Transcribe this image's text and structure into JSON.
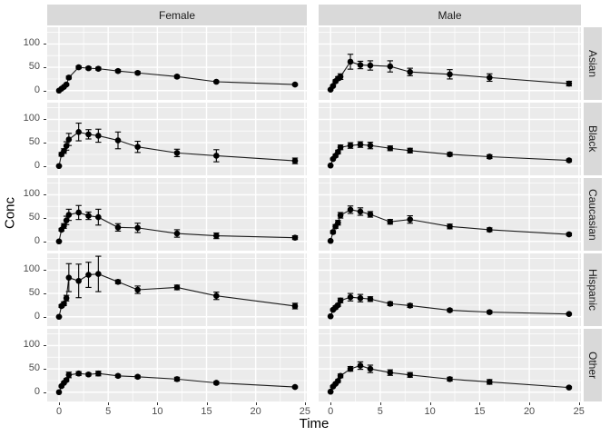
{
  "figure": {
    "xlabel": "Time",
    "ylabel": "Conc",
    "col_facets": [
      "Female",
      "Male"
    ],
    "row_facets": [
      "Asian",
      "Black",
      "Caucasian",
      "Hispanic",
      "Other"
    ],
    "x_tick_labels": [
      "0",
      "5",
      "10",
      "15",
      "20",
      "25"
    ],
    "y_tick_labels": [
      "100",
      "50",
      "0"
    ],
    "colors": {
      "panel_background": "#EBEBEB",
      "strip_background": "#D9D9D9",
      "gridline": "#FFFFFF",
      "point": "#000000",
      "line": "#1A1A1A",
      "axis_text": "#4D4D4D",
      "strip_text": "#1A1A1A"
    }
  },
  "chart_data": {
    "type": "line",
    "title": "",
    "xlabel": "Time",
    "ylabel": "Conc",
    "facet_columns": [
      "Female",
      "Male"
    ],
    "facet_rows": [
      "Asian",
      "Black",
      "Caucasian",
      "Hispanic",
      "Other"
    ],
    "x": [
      0,
      0.25,
      0.5,
      0.75,
      1,
      2,
      3,
      4,
      6,
      8,
      12,
      16,
      24
    ],
    "x_ticks": [
      0,
      5,
      10,
      15,
      20,
      25
    ],
    "y_ticks": [
      0,
      50,
      100
    ],
    "x_minor_ticks": [
      2.5,
      7.5,
      12.5,
      17.5,
      22.5
    ],
    "y_minor_ticks": [
      25,
      75,
      125
    ],
    "xlim": [
      -1.2,
      25.2
    ],
    "ylim": [
      -20,
      136
    ],
    "error_bars": true,
    "grid": true,
    "legend": false,
    "facets": [
      {
        "col": "Female",
        "row": "Asian",
        "mean": [
          0,
          4,
          8,
          13,
          28,
          50,
          48,
          47,
          42,
          38,
          30,
          19,
          13
        ],
        "err": [
          0,
          1,
          1,
          2,
          3,
          3,
          3,
          3,
          3,
          3,
          3,
          2,
          2
        ]
      },
      {
        "col": "Male",
        "row": "Asian",
        "mean": [
          2,
          10,
          20,
          26,
          30,
          62,
          55,
          54,
          52,
          40,
          35,
          28,
          15
        ],
        "err": [
          1,
          2,
          3,
          4,
          6,
          16,
          8,
          10,
          12,
          8,
          10,
          8,
          5
        ]
      },
      {
        "col": "Female",
        "row": "Black",
        "mean": [
          0,
          25,
          32,
          43,
          57,
          73,
          68,
          65,
          55,
          41,
          28,
          22,
          11
        ],
        "err": [
          1,
          4,
          5,
          9,
          13,
          19,
          10,
          14,
          18,
          12,
          8,
          13,
          6
        ]
      },
      {
        "col": "Male",
        "row": "Black",
        "mean": [
          1,
          15,
          22,
          30,
          40,
          44,
          46,
          44,
          38,
          33,
          25,
          20,
          12
        ],
        "err": [
          1,
          2,
          3,
          4,
          5,
          6,
          6,
          7,
          5,
          5,
          4,
          4,
          3
        ]
      },
      {
        "col": "Female",
        "row": "Caucasian",
        "mean": [
          0,
          25,
          33,
          45,
          57,
          62,
          55,
          52,
          30,
          29,
          17,
          12,
          8
        ],
        "err": [
          1,
          3,
          5,
          9,
          12,
          15,
          8,
          17,
          8,
          10,
          8,
          6,
          4
        ]
      },
      {
        "col": "Male",
        "row": "Caucasian",
        "mean": [
          1,
          20,
          32,
          40,
          56,
          68,
          64,
          58,
          42,
          47,
          32,
          25,
          15
        ],
        "err": [
          1,
          3,
          4,
          5,
          6,
          8,
          8,
          6,
          5,
          8,
          5,
          4,
          3
        ]
      },
      {
        "col": "Female",
        "row": "Hispanic",
        "mean": [
          0,
          23,
          28,
          40,
          84,
          77,
          90,
          92,
          75,
          58,
          63,
          45,
          23
        ],
        "err": [
          1,
          3,
          4,
          6,
          30,
          36,
          27,
          38,
          4,
          8,
          5,
          8,
          6
        ]
      },
      {
        "col": "Male",
        "row": "Hispanic",
        "mean": [
          1,
          15,
          20,
          25,
          35,
          42,
          40,
          38,
          28,
          24,
          14,
          10,
          6
        ],
        "err": [
          1,
          2,
          3,
          3,
          5,
          8,
          8,
          5,
          4,
          4,
          3,
          3,
          2
        ]
      },
      {
        "col": "Female",
        "row": "Other",
        "mean": [
          0,
          13,
          20,
          26,
          37,
          40,
          38,
          40,
          35,
          33,
          28,
          20,
          11
        ],
        "err": [
          0,
          2,
          2,
          3,
          6,
          4,
          3,
          5,
          3,
          3,
          4,
          3,
          2
        ]
      },
      {
        "col": "Male",
        "row": "Other",
        "mean": [
          1,
          12,
          18,
          24,
          35,
          50,
          57,
          50,
          42,
          37,
          28,
          22,
          10
        ],
        "err": [
          1,
          2,
          2,
          3,
          4,
          5,
          8,
          8,
          6,
          5,
          4,
          5,
          2
        ]
      }
    ]
  }
}
